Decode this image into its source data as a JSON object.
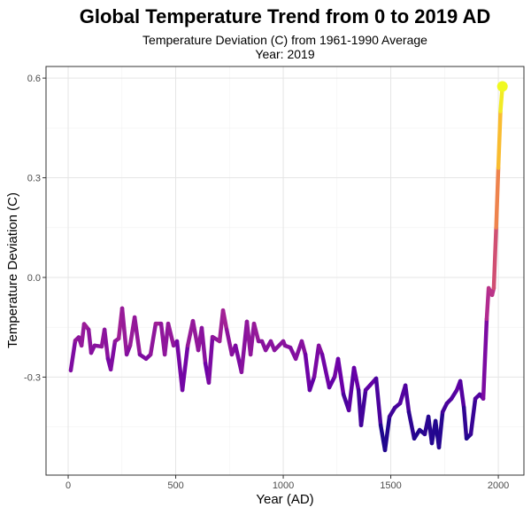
{
  "chart_data": {
    "type": "line",
    "title": "Global Temperature Trend from 0 to 2019 AD",
    "subtitle": "Temperature Deviation (C) from 1961-1990 Average",
    "subtitle2": "Year:  2019",
    "xlabel": "Year (AD)",
    "ylabel": "Temperature Deviation (C)",
    "xlim": [
      -103,
      2119
    ],
    "ylim": [
      -0.595,
      0.635
    ],
    "xticks": [
      0,
      500,
      1000,
      1500,
      2000
    ],
    "xtick_labels": [
      "0",
      "500",
      "1000",
      "1500",
      "2000"
    ],
    "yticks": [
      -0.3,
      0.0,
      0.3,
      0.6
    ],
    "ytick_labels": [
      "-0.3",
      "0.0",
      "0.3",
      "0.6"
    ],
    "grid": true,
    "color_scale": "plasma",
    "colors": [
      "#0d0887",
      "#6a00a8",
      "#b12a90",
      "#e16462",
      "#fca636",
      "#f0f921"
    ],
    "endpoint_marker": {
      "x": 2019,
      "y": 0.575,
      "color": "#f0f921"
    },
    "x": [
      12,
      33,
      49,
      62,
      74,
      95,
      107,
      123,
      156,
      169,
      185,
      198,
      218,
      235,
      251,
      272,
      288,
      309,
      333,
      362,
      383,
      407,
      432,
      449,
      465,
      490,
      506,
      531,
      556,
      580,
      605,
      621,
      638,
      654,
      671,
      704,
      720,
      737,
      761,
      778,
      806,
      831,
      848,
      864,
      885,
      901,
      918,
      942,
      959,
      1000,
      1008,
      1033,
      1058,
      1086,
      1103,
      1123,
      1144,
      1165,
      1181,
      1214,
      1239,
      1255,
      1280,
      1305,
      1329,
      1350,
      1362,
      1383,
      1403,
      1432,
      1453,
      1473,
      1494,
      1519,
      1543,
      1568,
      1584,
      1609,
      1634,
      1658,
      1675,
      1691,
      1708,
      1724,
      1741,
      1761,
      1782,
      1807,
      1823,
      1840,
      1852,
      1872,
      1893,
      1914,
      1930,
      1946,
      1955,
      1971,
      1979,
      1990,
      2000,
      2010,
      2019
    ],
    "y": [
      -0.28,
      -0.19,
      -0.18,
      -0.205,
      -0.14,
      -0.157,
      -0.227,
      -0.205,
      -0.208,
      -0.157,
      -0.245,
      -0.277,
      -0.192,
      -0.184,
      -0.093,
      -0.232,
      -0.205,
      -0.12,
      -0.232,
      -0.245,
      -0.232,
      -0.139,
      -0.139,
      -0.232,
      -0.139,
      -0.205,
      -0.192,
      -0.339,
      -0.205,
      -0.131,
      -0.219,
      -0.152,
      -0.259,
      -0.317,
      -0.179,
      -0.192,
      -0.099,
      -0.157,
      -0.232,
      -0.205,
      -0.285,
      -0.133,
      -0.232,
      -0.139,
      -0.192,
      -0.192,
      -0.219,
      -0.192,
      -0.219,
      -0.192,
      -0.205,
      -0.211,
      -0.245,
      -0.192,
      -0.232,
      -0.339,
      -0.299,
      -0.205,
      -0.232,
      -0.331,
      -0.299,
      -0.245,
      -0.352,
      -0.4,
      -0.272,
      -0.339,
      -0.445,
      -0.339,
      -0.325,
      -0.304,
      -0.445,
      -0.52,
      -0.419,
      -0.392,
      -0.379,
      -0.325,
      -0.405,
      -0.485,
      -0.459,
      -0.472,
      -0.419,
      -0.499,
      -0.432,
      -0.512,
      -0.405,
      -0.379,
      -0.365,
      -0.339,
      -0.312,
      -0.392,
      -0.485,
      -0.472,
      -0.365,
      -0.352,
      -0.365,
      -0.125,
      -0.032,
      -0.053,
      -0.032,
      0.15,
      0.33,
      0.5,
      0.575
    ]
  }
}
